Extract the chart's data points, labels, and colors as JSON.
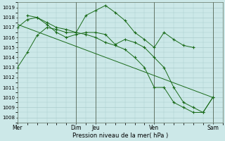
{
  "bg_color": "#cce8e8",
  "grid_color": "#aacccc",
  "line_color": "#1a6b1a",
  "xlabel": "Pression niveau de la mer( hPa )",
  "ylim": [
    1007.5,
    1019.5
  ],
  "ytick_min": 1008,
  "ytick_max": 1019,
  "xlim": [
    0,
    10.5
  ],
  "xtick_positions": [
    0,
    3,
    4,
    7,
    10
  ],
  "xtick_labels": [
    "Mer",
    "Dim",
    "Jeu",
    "Ven",
    "Sam"
  ],
  "vline_positions": [
    3,
    4,
    7,
    10
  ],
  "vline_color": "#556655",
  "series": [
    {
      "x": [
        0,
        0.5,
        1.0,
        1.5,
        2.0,
        2.5,
        3.0,
        3.5,
        4.0,
        4.5,
        5.0,
        5.5,
        6.0,
        6.5,
        7.0,
        7.5,
        8.0,
        8.5,
        9.0,
        9.5,
        10.0
      ],
      "y": [
        1013.0,
        1014.5,
        1016.2,
        1017.0,
        1016.8,
        1016.5,
        1016.5,
        1016.3,
        1016.0,
        1015.5,
        1015.2,
        1014.8,
        1014.0,
        1013.0,
        1011.0,
        1011.0,
        1009.5,
        1009.0,
        1008.5,
        1008.5,
        1010.0
      ],
      "marker_x": [
        0,
        0.5,
        1.0,
        1.5,
        2.0,
        2.5,
        3.0,
        3.5,
        4.0,
        4.5,
        5.0,
        5.5,
        6.0,
        6.5,
        7.0,
        7.5,
        8.0,
        8.5,
        9.0,
        9.5,
        10.0
      ]
    },
    {
      "x": [
        0.5,
        1.0,
        1.5,
        2.0,
        2.5,
        3.0,
        3.5,
        4.0,
        4.5,
        5.0,
        5.5,
        6.0,
        6.5,
        7.0,
        7.5,
        8.0,
        8.5,
        9.0
      ],
      "y": [
        1018.2,
        1018.0,
        1017.5,
        1017.0,
        1016.8,
        1016.5,
        1018.2,
        1018.7,
        1019.2,
        1018.5,
        1017.7,
        1016.5,
        1015.8,
        1015.0,
        1016.5,
        1015.8,
        1015.2,
        1015.0
      ],
      "marker_x": [
        0.5,
        1.0,
        1.5,
        2.0,
        2.5,
        3.0,
        3.5,
        4.0,
        4.5,
        5.0,
        5.5,
        6.0,
        6.5,
        7.0,
        7.5,
        8.0,
        8.5,
        9.0
      ]
    },
    {
      "x": [
        0,
        10.0
      ],
      "y": [
        1017.3,
        1010.0
      ],
      "marker_x": []
    },
    {
      "x": [
        0,
        0.5,
        1.0,
        1.5,
        2.0,
        2.5,
        3.0,
        3.5,
        4.0,
        4.5,
        5.0,
        5.5,
        6.0,
        6.5,
        7.0,
        7.5,
        8.0,
        8.5,
        9.0,
        9.5,
        10.0
      ],
      "y": [
        1017.0,
        1017.8,
        1018.0,
        1017.3,
        1016.5,
        1016.0,
        1016.3,
        1016.5,
        1016.5,
        1016.3,
        1015.3,
        1015.8,
        1015.5,
        1015.0,
        1014.0,
        1013.0,
        1011.0,
        1009.5,
        1009.0,
        1008.5,
        1010.0
      ],
      "marker_x": [
        0,
        0.5,
        1.0,
        1.5,
        2.0,
        2.5,
        3.0,
        3.5,
        4.0,
        4.5,
        5.0,
        5.5,
        6.0,
        6.5,
        7.0,
        7.5,
        8.0,
        8.5,
        9.0,
        9.5,
        10.0
      ]
    }
  ]
}
